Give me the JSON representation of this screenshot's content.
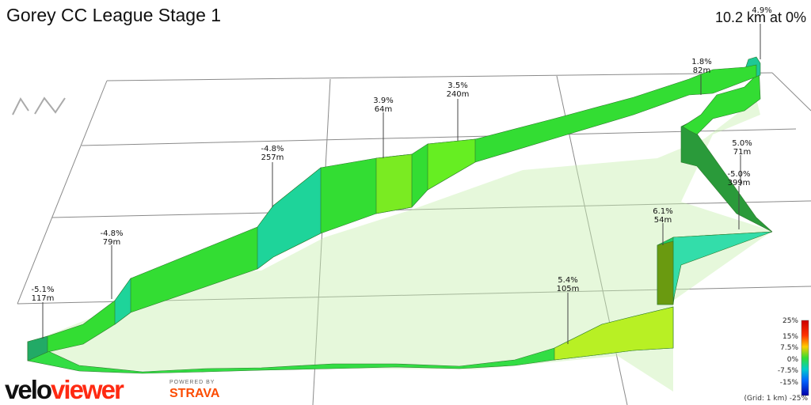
{
  "header": {
    "title": "Gorey CC League Stage 1",
    "summary": "10.2 km at 0%"
  },
  "branding": {
    "velo": "velo",
    "viewer": "viewer",
    "powered_by": "POWERED BY",
    "strava": "STRAVA"
  },
  "grid_note": "(Grid: 1 km) -25%",
  "chart_data": {
    "type": "area",
    "title": "Gorey CC League Stage 1",
    "subtitle": "10.2 km at 0%",
    "annotations": [
      {
        "gradient": "4.9%",
        "length": ""
      },
      {
        "gradient": "1.8%",
        "length": "82m"
      },
      {
        "gradient": "3.5%",
        "length": "240m"
      },
      {
        "gradient": "3.9%",
        "length": "64m"
      },
      {
        "gradient": "-4.8%",
        "length": "257m"
      },
      {
        "gradient": "5.0%",
        "length": "71m"
      },
      {
        "gradient": "-5.0%",
        "length": "399m"
      },
      {
        "gradient": "6.1%",
        "length": "54m"
      },
      {
        "gradient": "-4.8%",
        "length": "79m"
      },
      {
        "gradient": "5.4%",
        "length": "105m"
      },
      {
        "gradient": "-5.1%",
        "length": "117m"
      }
    ],
    "legend": {
      "title": "",
      "placement": "bottom-right",
      "ticks": [
        "25%",
        "15%",
        "7.5%",
        "0%",
        "-7.5%",
        "-15%",
        "-25%"
      ],
      "colors": [
        "#cc0000",
        "#ff3300",
        "#ffcc00",
        "#33dd33",
        "#00cccc",
        "#0066ff",
        "#0000aa"
      ]
    },
    "grid": true,
    "grid_spacing": "1 km"
  }
}
